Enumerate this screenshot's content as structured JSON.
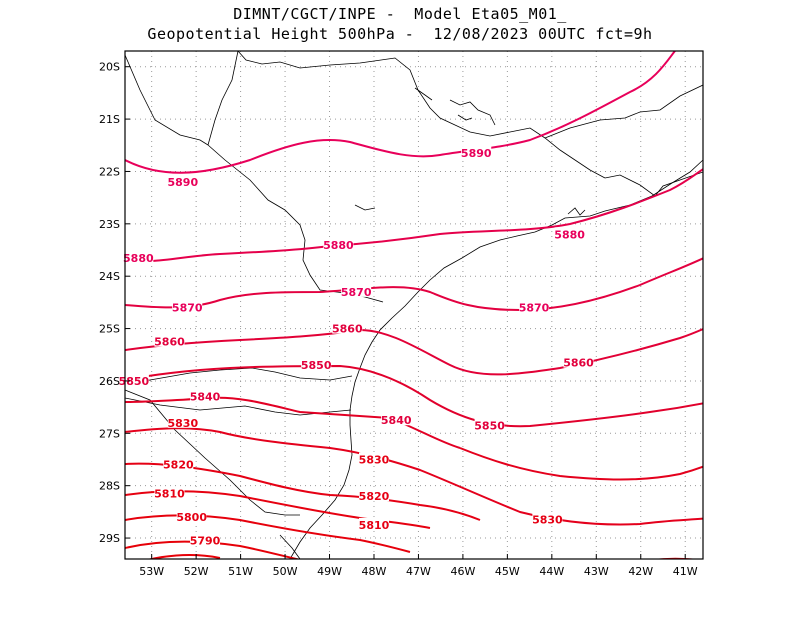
{
  "header": {
    "line1": "DIMNT/CGCT/INPE -  Model Eta05_M01_",
    "line2": "Geopotential Height 500hPa -  12/08/2023 00UTC fct=9h"
  },
  "map": {
    "lon_range": [
      -53.6,
      -40.6
    ],
    "lat_range": [
      -29.4,
      -19.7
    ],
    "lat_ticks": [
      "20S",
      "21S",
      "22S",
      "23S",
      "24S",
      "25S",
      "26S",
      "27S",
      "28S",
      "29S"
    ],
    "lon_ticks": [
      "53W",
      "52W",
      "51W",
      "50W",
      "49W",
      "48W",
      "47W",
      "46W",
      "45W",
      "44W",
      "43W",
      "42W",
      "41W"
    ],
    "grid": "dotted"
  },
  "colors": {
    "warm": "#e8005a",
    "mid": "#e2003c",
    "cool": "#e60014",
    "coast": "#000000"
  },
  "contours": [
    {
      "value": "5890",
      "label_lon": -52.3,
      "label_lat": -22.2
    },
    {
      "value": "5890",
      "label_lon": -45.7,
      "label_lat": -21.65
    },
    {
      "value": "5880",
      "label_lon": -53.3,
      "label_lat": -23.65
    },
    {
      "value": "5880",
      "label_lon": -48.8,
      "label_lat": -23.4
    },
    {
      "value": "5880",
      "label_lon": -43.6,
      "label_lat": -23.2
    },
    {
      "value": "5870",
      "label_lon": -52.2,
      "label_lat": -24.6
    },
    {
      "value": "5870",
      "label_lon": -48.4,
      "label_lat": -24.3
    },
    {
      "value": "5870",
      "label_lon": -44.4,
      "label_lat": -24.6
    },
    {
      "value": "5860",
      "label_lon": -52.6,
      "label_lat": -25.25
    },
    {
      "value": "5860",
      "label_lon": -48.6,
      "label_lat": -25.0
    },
    {
      "value": "5860",
      "label_lon": -43.4,
      "label_lat": -25.65
    },
    {
      "value": "5850",
      "label_lon": -53.4,
      "label_lat": -26.0
    },
    {
      "value": "5850",
      "label_lon": -49.3,
      "label_lat": -25.7
    },
    {
      "value": "5850",
      "label_lon": -45.4,
      "label_lat": -26.85
    },
    {
      "value": "5840",
      "label_lon": -51.8,
      "label_lat": -26.3
    },
    {
      "value": "5840",
      "label_lon": -47.5,
      "label_lat": -26.75
    },
    {
      "value": "5830",
      "label_lon": -52.3,
      "label_lat": -26.8
    },
    {
      "value": "5830",
      "label_lon": -48.0,
      "label_lat": -27.5
    },
    {
      "value": "5830",
      "label_lon": -44.1,
      "label_lat": -28.65
    },
    {
      "value": "5820",
      "label_lon": -52.4,
      "label_lat": -27.6
    },
    {
      "value": "5820",
      "label_lon": -48.0,
      "label_lat": -28.2
    },
    {
      "value": "5810",
      "label_lon": -52.6,
      "label_lat": -28.15
    },
    {
      "value": "5810",
      "label_lon": -48.0,
      "label_lat": -28.75
    },
    {
      "value": "5800",
      "label_lon": -52.1,
      "label_lat": -28.6
    },
    {
      "value": "5790",
      "label_lon": -51.8,
      "label_lat": -29.05
    }
  ]
}
